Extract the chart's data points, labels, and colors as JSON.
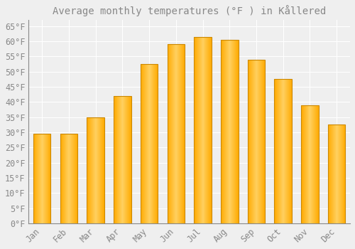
{
  "title": "Average monthly temperatures (°F ) in Kållered",
  "months": [
    "Jan",
    "Feb",
    "Mar",
    "Apr",
    "May",
    "Jun",
    "Jul",
    "Aug",
    "Sep",
    "Oct",
    "Nov",
    "Dec"
  ],
  "values": [
    29.5,
    29.5,
    35.0,
    42.0,
    52.5,
    59.0,
    61.5,
    60.5,
    54.0,
    47.5,
    39.0,
    32.5
  ],
  "bar_color_main": "#FFAA00",
  "bar_color_light": "#FFD060",
  "bar_edge_color": "#CC8800",
  "background_color": "#EFEFEF",
  "grid_color": "#FFFFFF",
  "text_color": "#888888",
  "spine_color": "#888888",
  "ylim": [
    0,
    67
  ],
  "yticks": [
    0,
    5,
    10,
    15,
    20,
    25,
    30,
    35,
    40,
    45,
    50,
    55,
    60,
    65
  ],
  "title_fontsize": 10,
  "tick_fontsize": 8.5,
  "bar_width": 0.65
}
